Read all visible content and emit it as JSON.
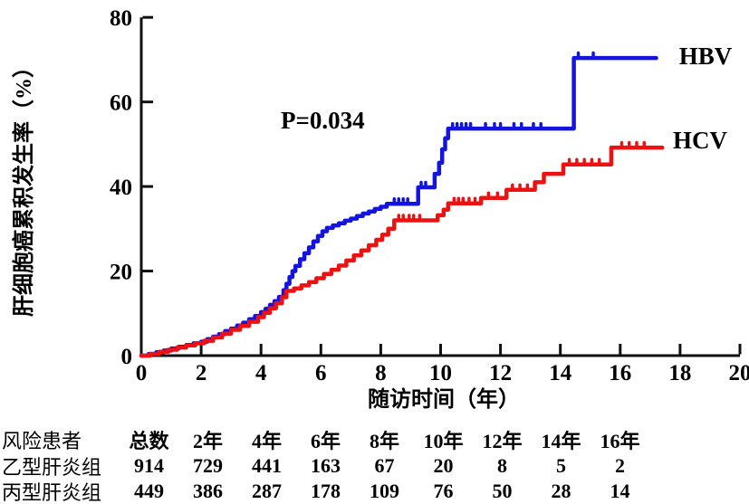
{
  "chart_data": {
    "type": "line",
    "subtype": "kaplan-meier-step",
    "title": "",
    "xlabel": "随访时间（年）",
    "ylabel": "肝细胞癌累积发生率（%）",
    "annotation": "P=0.034",
    "xlim": [
      0,
      20
    ],
    "ylim": [
      0,
      80
    ],
    "x_ticks": [
      0,
      2,
      4,
      6,
      8,
      10,
      12,
      14,
      16,
      18,
      20
    ],
    "y_ticks": [
      0,
      20,
      40,
      60,
      80
    ],
    "grid": false,
    "legend_position": "right-of-curves",
    "axis_color": "#111111",
    "series": [
      {
        "name": "HBV",
        "color": "#1414e0",
        "step_points": [
          [
            0,
            0
          ],
          [
            0.25,
            0.4
          ],
          [
            0.5,
            0.8
          ],
          [
            0.75,
            1.2
          ],
          [
            1,
            1.7
          ],
          [
            1.25,
            2.1
          ],
          [
            1.5,
            2.5
          ],
          [
            1.75,
            2.9
          ],
          [
            2,
            3.3
          ],
          [
            2.2,
            3.9
          ],
          [
            2.4,
            4.5
          ],
          [
            2.6,
            5.1
          ],
          [
            2.8,
            5.8
          ],
          [
            3,
            6.4
          ],
          [
            3.2,
            7.1
          ],
          [
            3.4,
            7.8
          ],
          [
            3.6,
            8.6
          ],
          [
            3.8,
            9.4
          ],
          [
            4,
            10.3
          ],
          [
            4.15,
            11.1
          ],
          [
            4.3,
            12
          ],
          [
            4.45,
            12.9
          ],
          [
            4.6,
            13.9
          ],
          [
            4.75,
            15.5
          ],
          [
            4.85,
            17
          ],
          [
            4.95,
            18.6
          ],
          [
            5.05,
            20
          ],
          [
            5.15,
            21.2
          ],
          [
            5.3,
            22.8
          ],
          [
            5.45,
            24.2
          ],
          [
            5.6,
            25.6
          ],
          [
            5.75,
            27
          ],
          [
            5.9,
            28.3
          ],
          [
            6.05,
            29.4
          ],
          [
            6.2,
            30.2
          ],
          [
            6.4,
            30.8
          ],
          [
            6.6,
            31.3
          ],
          [
            6.8,
            31.9
          ],
          [
            7,
            32.4
          ],
          [
            7.2,
            33
          ],
          [
            7.4,
            33.6
          ],
          [
            7.6,
            34.1
          ],
          [
            7.8,
            34.7
          ],
          [
            8,
            35.2
          ],
          [
            8.2,
            35.9
          ],
          [
            9.25,
            39.8
          ],
          [
            9.8,
            43
          ],
          [
            9.95,
            45.6
          ],
          [
            10.05,
            48.8
          ],
          [
            10.15,
            51.4
          ],
          [
            10.25,
            53.7
          ],
          [
            14.45,
            70.4
          ],
          [
            17.2,
            70.4
          ]
        ],
        "censor_ticks": [
          [
            8.45,
            35.9
          ],
          [
            8.6,
            35.9
          ],
          [
            8.75,
            35.9
          ],
          [
            8.9,
            35.9
          ],
          [
            9.35,
            39.8
          ],
          [
            9.5,
            39.8
          ],
          [
            10.4,
            53.7
          ],
          [
            10.55,
            53.7
          ],
          [
            10.7,
            53.7
          ],
          [
            10.85,
            53.7
          ],
          [
            11,
            53.7
          ],
          [
            11.5,
            53.7
          ],
          [
            11.8,
            53.7
          ],
          [
            12,
            53.7
          ],
          [
            12.45,
            53.7
          ],
          [
            12.7,
            53.7
          ],
          [
            13.1,
            53.7
          ],
          [
            13.35,
            53.7
          ],
          [
            14.6,
            70.4
          ],
          [
            15.1,
            70.4
          ]
        ]
      },
      {
        "name": "HCV",
        "color": "#ee1111",
        "step_points": [
          [
            0,
            0
          ],
          [
            0.3,
            0.4
          ],
          [
            0.6,
            0.9
          ],
          [
            0.9,
            1.4
          ],
          [
            1.2,
            1.9
          ],
          [
            1.5,
            2.4
          ],
          [
            1.8,
            2.9
          ],
          [
            2.1,
            3.5
          ],
          [
            2.4,
            4.3
          ],
          [
            2.7,
            5.2
          ],
          [
            3,
            6.1
          ],
          [
            3.3,
            7
          ],
          [
            3.6,
            8
          ],
          [
            3.9,
            9.1
          ],
          [
            4.1,
            10.1
          ],
          [
            4.3,
            11.2
          ],
          [
            4.5,
            12.4
          ],
          [
            4.7,
            13.8
          ],
          [
            4.85,
            15.3
          ],
          [
            5.1,
            15.9
          ],
          [
            5.35,
            16.6
          ],
          [
            5.6,
            17.4
          ],
          [
            5.85,
            18.3
          ],
          [
            6.1,
            19.3
          ],
          [
            6.35,
            20.3
          ],
          [
            6.6,
            21.3
          ],
          [
            6.85,
            22.5
          ],
          [
            7.1,
            23.7
          ],
          [
            7.35,
            24.9
          ],
          [
            7.6,
            26.1
          ],
          [
            7.85,
            27.4
          ],
          [
            8.05,
            28.6
          ],
          [
            8.25,
            30
          ],
          [
            8.45,
            32
          ],
          [
            9.9,
            33.2
          ],
          [
            10.1,
            34.5
          ],
          [
            10.25,
            36
          ],
          [
            11.35,
            37.3
          ],
          [
            12.2,
            39.2
          ],
          [
            13.15,
            41
          ],
          [
            13.45,
            43
          ],
          [
            14.1,
            45.2
          ],
          [
            15.7,
            49.2
          ],
          [
            17.4,
            49.2
          ]
        ],
        "censor_ticks": [
          [
            8.6,
            32
          ],
          [
            8.75,
            32
          ],
          [
            8.95,
            32
          ],
          [
            9.1,
            32
          ],
          [
            9.3,
            32
          ],
          [
            10.45,
            36
          ],
          [
            10.6,
            36
          ],
          [
            10.75,
            36
          ],
          [
            10.95,
            36
          ],
          [
            11.15,
            36
          ],
          [
            11.6,
            37.3
          ],
          [
            11.9,
            37.3
          ],
          [
            12.4,
            39.2
          ],
          [
            12.65,
            39.2
          ],
          [
            12.9,
            39.2
          ],
          [
            14.3,
            45.2
          ],
          [
            14.55,
            45.2
          ],
          [
            14.8,
            45.2
          ],
          [
            15.05,
            45.2
          ],
          [
            15.3,
            45.2
          ],
          [
            16.05,
            49.2
          ],
          [
            16.3,
            49.2
          ],
          [
            16.55,
            49.2
          ],
          [
            16.8,
            49.2
          ]
        ]
      }
    ]
  },
  "risk_table": {
    "row_header_label": "风险患者",
    "columns": [
      "总数",
      "2年",
      "4年",
      "6年",
      "8年",
      "10年",
      "12年",
      "14年",
      "16年"
    ],
    "rows": [
      {
        "label": "乙型肝炎组",
        "values": [
          914,
          729,
          441,
          163,
          67,
          20,
          8,
          5,
          2
        ]
      },
      {
        "label": "丙型肝炎组",
        "values": [
          449,
          386,
          287,
          178,
          109,
          76,
          50,
          28,
          14
        ]
      }
    ]
  }
}
